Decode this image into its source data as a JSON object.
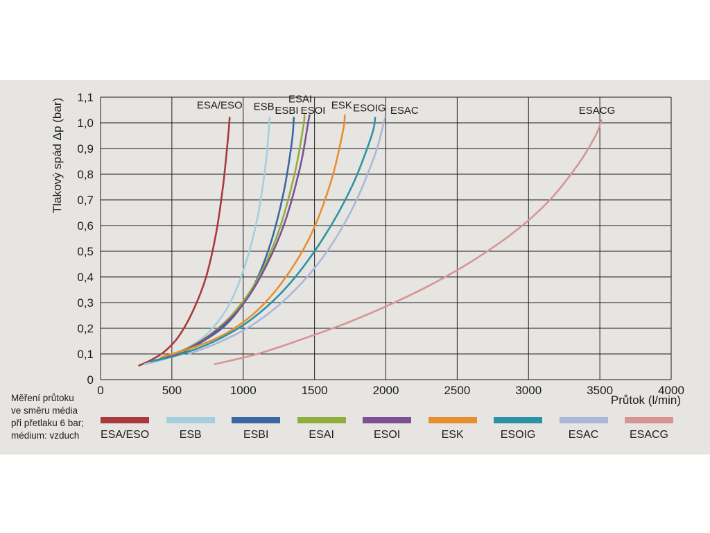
{
  "y_axis_title": "Tlakový spád Δp (bar)",
  "x_axis_title": "Průtok (l/min)",
  "note": "Měření průtoku\nve směru média\npři přetlaku 6 bar;\nmédium: vzduch",
  "colors": {
    "panel_background": "#e6e5e2",
    "grid": "#1c1c1c",
    "text": "#1c1c1c"
  },
  "chart_data": {
    "type": "line",
    "title": "",
    "xlabel": "Průtok (l/min)",
    "ylabel": "Tlakový spád Δp (bar)",
    "xlim": [
      0,
      4000
    ],
    "ylim": [
      0,
      1.1
    ],
    "x_ticks": [
      0,
      500,
      1000,
      1500,
      2000,
      2500,
      3000,
      3500,
      4000
    ],
    "y_ticks": [
      0,
      0.1,
      0.2,
      0.3,
      0.4,
      0.5,
      0.6,
      0.7,
      0.8,
      0.9,
      1.0,
      1.1
    ],
    "grid": true,
    "legend_position": "bottom",
    "series": [
      {
        "name": "ESA/ESO",
        "color": "#aa3a3a",
        "label_x": 835,
        "label_y": 1.055,
        "points": [
          [
            270,
            0.055
          ],
          [
            350,
            0.075
          ],
          [
            450,
            0.11
          ],
          [
            550,
            0.17
          ],
          [
            650,
            0.27
          ],
          [
            740,
            0.4
          ],
          [
            810,
            0.57
          ],
          [
            860,
            0.76
          ],
          [
            895,
            0.95
          ],
          [
            905,
            1.02
          ]
        ]
      },
      {
        "name": "ESB",
        "color": "#a6cede",
        "label_x": 1145,
        "label_y": 1.05,
        "points": [
          [
            310,
            0.06
          ],
          [
            450,
            0.08
          ],
          [
            600,
            0.12
          ],
          [
            750,
            0.18
          ],
          [
            900,
            0.29
          ],
          [
            1010,
            0.44
          ],
          [
            1100,
            0.63
          ],
          [
            1160,
            0.85
          ],
          [
            1185,
            1.02
          ]
        ]
      },
      {
        "name": "ESBI",
        "color": "#3a68a0",
        "label_x": 1305,
        "label_y": 1.035,
        "points": [
          [
            380,
            0.075
          ],
          [
            550,
            0.1
          ],
          [
            720,
            0.15
          ],
          [
            890,
            0.22
          ],
          [
            1050,
            0.34
          ],
          [
            1180,
            0.51
          ],
          [
            1280,
            0.72
          ],
          [
            1340,
            0.92
          ],
          [
            1355,
            1.02
          ]
        ]
      },
      {
        "name": "ESAI",
        "color": "#8fae3e",
        "label_x": 1400,
        "label_y": 1.08,
        "points": [
          [
            420,
            0.085
          ],
          [
            600,
            0.12
          ],
          [
            780,
            0.18
          ],
          [
            950,
            0.27
          ],
          [
            1110,
            0.4
          ],
          [
            1250,
            0.58
          ],
          [
            1360,
            0.8
          ],
          [
            1420,
            0.98
          ],
          [
            1430,
            1.03
          ]
        ]
      },
      {
        "name": "ESOI",
        "color": "#7e4f93",
        "label_x": 1490,
        "label_y": 1.035,
        "points": [
          [
            440,
            0.085
          ],
          [
            630,
            0.125
          ],
          [
            810,
            0.19
          ],
          [
            980,
            0.28
          ],
          [
            1140,
            0.42
          ],
          [
            1290,
            0.61
          ],
          [
            1400,
            0.83
          ],
          [
            1455,
            1.0
          ],
          [
            1465,
            1.03
          ]
        ]
      },
      {
        "name": "ESK",
        "color": "#e78f2e",
        "label_x": 1690,
        "label_y": 1.055,
        "points": [
          [
            440,
            0.09
          ],
          [
            650,
            0.125
          ],
          [
            880,
            0.18
          ],
          [
            1100,
            0.27
          ],
          [
            1300,
            0.4
          ],
          [
            1480,
            0.57
          ],
          [
            1620,
            0.78
          ],
          [
            1700,
            0.97
          ],
          [
            1712,
            1.03
          ]
        ]
      },
      {
        "name": "ESOIG",
        "color": "#2b93a4",
        "label_x": 1885,
        "label_y": 1.045,
        "points": [
          [
            350,
            0.07
          ],
          [
            570,
            0.1
          ],
          [
            820,
            0.155
          ],
          [
            1070,
            0.24
          ],
          [
            1320,
            0.37
          ],
          [
            1560,
            0.55
          ],
          [
            1760,
            0.75
          ],
          [
            1900,
            0.95
          ],
          [
            1925,
            1.02
          ]
        ]
      },
      {
        "name": "ESAC",
        "color": "#a9b7d8",
        "label_x": 2130,
        "label_y": 1.035,
        "points": [
          [
            620,
            0.1
          ],
          [
            830,
            0.145
          ],
          [
            1070,
            0.215
          ],
          [
            1310,
            0.32
          ],
          [
            1550,
            0.47
          ],
          [
            1760,
            0.66
          ],
          [
            1920,
            0.87
          ],
          [
            1985,
            1.0
          ],
          [
            1995,
            1.02
          ]
        ]
      },
      {
        "name": "ESACG",
        "color": "#d89493",
        "label_x": 3480,
        "label_y": 1.035,
        "points": [
          [
            800,
            0.06
          ],
          [
            1100,
            0.1
          ],
          [
            1400,
            0.155
          ],
          [
            1700,
            0.215
          ],
          [
            2000,
            0.285
          ],
          [
            2300,
            0.365
          ],
          [
            2600,
            0.46
          ],
          [
            2900,
            0.575
          ],
          [
            3150,
            0.7
          ],
          [
            3350,
            0.84
          ],
          [
            3470,
            0.95
          ],
          [
            3510,
            1.01
          ]
        ]
      }
    ]
  }
}
